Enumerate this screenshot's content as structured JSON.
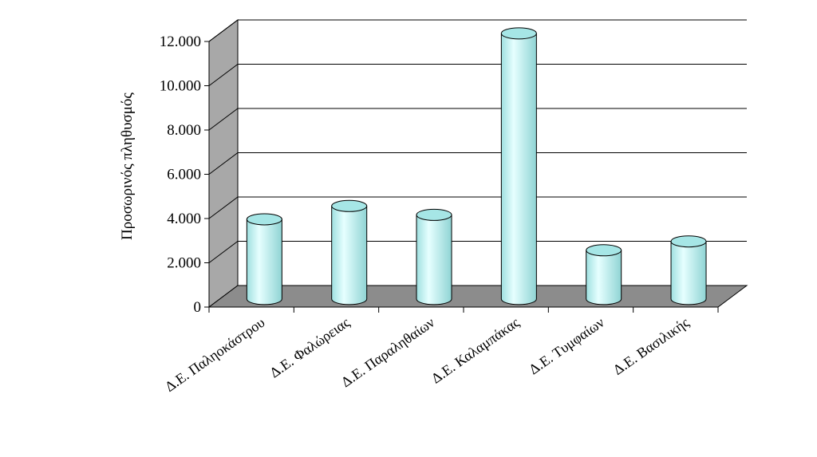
{
  "chart_data": {
    "type": "bar",
    "style": "3d-cylinder",
    "ylabel": "Προσωρινός πληθυσμός",
    "xlabel": "",
    "title": "",
    "categories": [
      "Δ.Ε. Παληοκάστρου",
      "Δ.Ε. Φαλώρειας",
      "Δ.Ε. Παραληθαίων",
      "Δ.Ε. Καλαμπάκας",
      "Δ.Ε. Τυμφαίων",
      "Δ.Ε. Βασιλικής"
    ],
    "values": [
      3600,
      4200,
      3800,
      12000,
      2200,
      2600
    ],
    "ylim": [
      0,
      12000
    ],
    "yticks": [
      0,
      2000,
      4000,
      6000,
      8000,
      10000,
      12000
    ],
    "ytick_labels": [
      "0",
      "2.000",
      "4.000",
      "6.000",
      "8.000",
      "10.000",
      "12.000"
    ],
    "grid": true,
    "legend": "none",
    "colors": {
      "bar_fill": "#c4f4f4",
      "bar_edge": "#000000",
      "wall": "#a8a8a8",
      "floor": "#8c8c8c",
      "grid": "#000000"
    }
  }
}
